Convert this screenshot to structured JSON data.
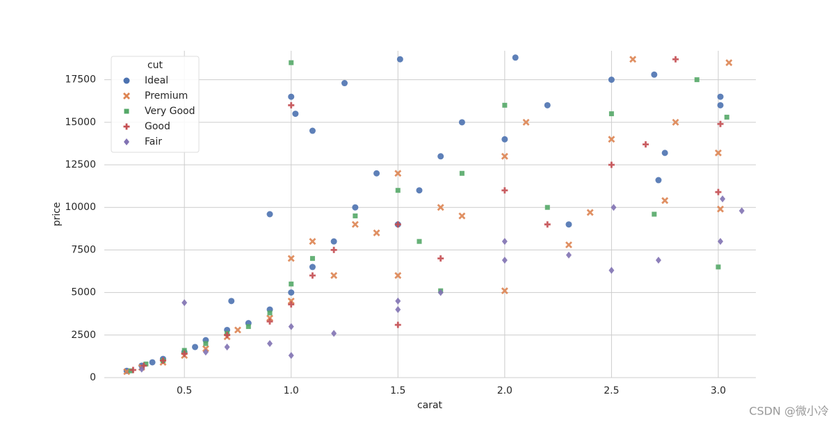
{
  "chart_data": {
    "type": "scatter",
    "xlabel": "carat",
    "ylabel": "price",
    "xlim": [
      0.125,
      3.176
    ],
    "ylim": [
      0,
      19200
    ],
    "xticks": [
      0.5,
      {
        "value": 1,
        "label": "1.0"
      },
      1.5,
      {
        "value": 2,
        "label": "2.0"
      },
      2.5,
      {
        "value": 3,
        "label": "3.0"
      }
    ],
    "yticks": [
      0,
      2500,
      5000,
      7500,
      10000,
      12500,
      15000,
      17500
    ],
    "grid": true,
    "legend_title": "cut",
    "legend_position": "upper-left",
    "series": [
      {
        "name": "Ideal",
        "color": "#4c72b0",
        "marker": "circle",
        "x": [
          0.23,
          0.3,
          0.35,
          0.4,
          0.5,
          0.55,
          0.6,
          0.7,
          0.72,
          0.8,
          0.9,
          0.9,
          1.0,
          1.0,
          1.02,
          1.1,
          1.1,
          1.2,
          1.25,
          1.3,
          1.4,
          1.5,
          1.51,
          1.6,
          1.7,
          1.8,
          2.0,
          2.05,
          2.2,
          2.3,
          2.5,
          2.72,
          2.75,
          3.01,
          3.01,
          2.7
        ],
        "values": [
          400,
          700,
          900,
          1100,
          1500,
          1800,
          2200,
          2800,
          4500,
          3200,
          4000,
          9600,
          5000,
          16500,
          15500,
          6500,
          14500,
          8000,
          17300,
          10000,
          12000,
          9000,
          18700,
          11000,
          13000,
          15000,
          14000,
          18800,
          16000,
          9000,
          17500,
          11600,
          13200,
          16000,
          16500,
          17800
        ]
      },
      {
        "name": "Premium",
        "color": "#dd8452",
        "marker": "x",
        "x": [
          0.23,
          0.3,
          0.4,
          0.5,
          0.6,
          0.7,
          0.75,
          0.9,
          1.0,
          1.0,
          1.1,
          1.2,
          1.3,
          1.4,
          1.5,
          1.5,
          1.7,
          1.8,
          2.0,
          2.0,
          2.1,
          2.3,
          2.4,
          2.5,
          2.6,
          2.75,
          2.8,
          3.0,
          3.01,
          3.05
        ],
        "values": [
          350,
          600,
          900,
          1300,
          1700,
          2400,
          2800,
          3500,
          4500,
          7000,
          8000,
          6000,
          9000,
          8500,
          6000,
          12000,
          10000,
          9500,
          5100,
          13000,
          15000,
          7800,
          9700,
          14000,
          18700,
          10400,
          15000,
          13200,
          9900,
          18500
        ]
      },
      {
        "name": "Very Good",
        "color": "#55a868",
        "marker": "square",
        "x": [
          0.25,
          0.32,
          0.4,
          0.5,
          0.6,
          0.7,
          0.8,
          0.9,
          1.0,
          1.0,
          1.1,
          1.3,
          1.5,
          1.6,
          1.7,
          1.8,
          2.0,
          2.2,
          2.5,
          2.7,
          2.9,
          3.0,
          3.04
        ],
        "values": [
          400,
          800,
          1000,
          1600,
          2000,
          2600,
          3000,
          3800,
          5500,
          18500,
          7000,
          9500,
          11000,
          8000,
          5100,
          12000,
          16000,
          10000,
          15500,
          9600,
          17500,
          6500,
          15300
        ]
      },
      {
        "name": "Good",
        "color": "#c44e52",
        "marker": "plus",
        "x": [
          0.26,
          0.31,
          0.4,
          0.5,
          0.7,
          0.9,
          1.0,
          1.0,
          1.1,
          1.2,
          1.5,
          1.5,
          1.7,
          2.0,
          2.2,
          2.5,
          2.66,
          2.8,
          3.0,
          3.01
        ],
        "values": [
          450,
          700,
          1000,
          1400,
          2500,
          3300,
          4300,
          16000,
          6000,
          7500,
          3100,
          9000,
          7000,
          11000,
          9000,
          12500,
          13700,
          18700,
          10900,
          14900
        ]
      },
      {
        "name": "Fair",
        "color": "#8172b3",
        "marker": "diamond",
        "x": [
          0.3,
          0.5,
          0.6,
          0.7,
          0.9,
          1.0,
          1.0,
          1.2,
          1.5,
          1.5,
          1.7,
          2.0,
          2.0,
          2.3,
          2.5,
          2.51,
          2.72,
          3.01,
          3.02,
          3.11
        ],
        "values": [
          500,
          4400,
          1500,
          1800,
          2000,
          1300,
          3000,
          2600,
          4000,
          4500,
          5000,
          6900,
          8000,
          7200,
          6300,
          10000,
          6900,
          8000,
          10500,
          9800
        ]
      }
    ]
  },
  "watermark": "CSDN @微小冷"
}
